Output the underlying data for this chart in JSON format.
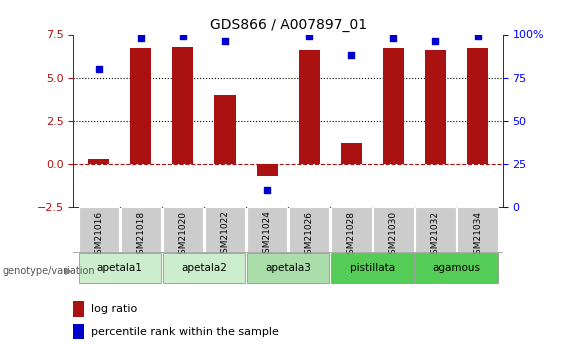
{
  "title": "GDS866 / A007897_01",
  "samples": [
    "GSM21016",
    "GSM21018",
    "GSM21020",
    "GSM21022",
    "GSM21024",
    "GSM21026",
    "GSM21028",
    "GSM21030",
    "GSM21032",
    "GSM21034"
  ],
  "log_ratio": [
    0.3,
    6.7,
    6.8,
    4.0,
    -0.7,
    6.6,
    1.2,
    6.7,
    6.6,
    6.7
  ],
  "percentile_rank": [
    80,
    98,
    99,
    96,
    10,
    99,
    88,
    98,
    96,
    99
  ],
  "groups": [
    {
      "label": "apetala1",
      "start": 0,
      "end": 2,
      "color": "#cceecc"
    },
    {
      "label": "apetala2",
      "start": 2,
      "end": 4,
      "color": "#cceecc"
    },
    {
      "label": "apetala3",
      "start": 4,
      "end": 6,
      "color": "#aaddaa"
    },
    {
      "label": "pistillata",
      "start": 6,
      "end": 8,
      "color": "#55cc55"
    },
    {
      "label": "agamous",
      "start": 8,
      "end": 10,
      "color": "#55cc55"
    }
  ],
  "ylim_left": [
    -2.5,
    7.5
  ],
  "ylim_right": [
    0,
    100
  ],
  "yticks_left": [
    -2.5,
    0,
    2.5,
    5.0,
    7.5
  ],
  "yticks_right": [
    0,
    25,
    50,
    75,
    100
  ],
  "bar_color": "#aa1111",
  "dot_color": "#0000cc",
  "bar_width": 0.5,
  "legend_red_label": "log ratio",
  "legend_blue_label": "percentile rank within the sample",
  "genotype_label": "genotype/variation",
  "sample_box_colors": [
    "#cccccc",
    "#cccccc",
    "#cccccc",
    "#cccccc",
    "#aaaaaa",
    "#aaaaaa",
    "#cccccc",
    "#cccccc",
    "#cccccc",
    "#cccccc"
  ]
}
